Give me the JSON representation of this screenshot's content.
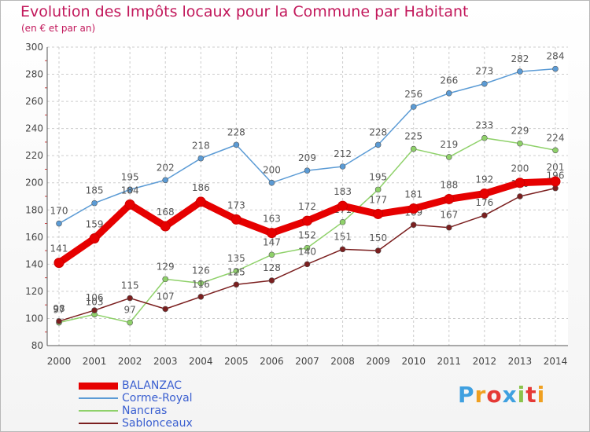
{
  "title": "Evolution des Impôts locaux pour la Commune par Habitant",
  "subtitle": "(en € et par an)",
  "logo": {
    "text": "Proxiti",
    "letters": [
      "P",
      "r",
      "o",
      "x",
      "i",
      "t",
      "i"
    ],
    "colors": [
      "#3fa0e0",
      "#f0a020",
      "#e53935",
      "#3fa0e0",
      "#8bc34a",
      "#e53935",
      "#f0a020"
    ]
  },
  "chart_data": {
    "type": "line",
    "title": "Evolution des Impôts locaux pour la Commune par Habitant",
    "xlabel": "",
    "ylabel": "",
    "ylim": [
      80,
      300
    ],
    "yticks": [
      80,
      100,
      120,
      140,
      160,
      180,
      200,
      220,
      240,
      260,
      280,
      300
    ],
    "grid": true,
    "legend_position": "bottom-left",
    "x": [
      "2000",
      "2001",
      "2002",
      "2003",
      "2004",
      "2005",
      "2006",
      "2007",
      "2008",
      "2009",
      "2010",
      "2011",
      "2012",
      "2013",
      "2014"
    ],
    "series": [
      {
        "name": "BALANZAC",
        "color": "#e60000",
        "values": [
          141,
          159,
          184,
          168,
          186,
          173,
          163,
          172,
          183,
          177,
          181,
          188,
          192,
          200,
          201
        ]
      },
      {
        "name": "Corme-Royal",
        "color": "#5b9bd5",
        "values": [
          170,
          185,
          195,
          202,
          218,
          228,
          200,
          209,
          212,
          228,
          256,
          266,
          273,
          282,
          284
        ]
      },
      {
        "name": "Nancras",
        "color": "#8fd16a",
        "values": [
          97,
          103,
          97,
          129,
          126,
          135,
          147,
          152,
          171,
          195,
          225,
          219,
          233,
          229,
          224
        ]
      },
      {
        "name": "Sablonceaux",
        "color": "#7b1f1f",
        "values": [
          98,
          106,
          115,
          107,
          116,
          125,
          128,
          140,
          151,
          150,
          169,
          167,
          176,
          190,
          196
        ]
      }
    ]
  }
}
